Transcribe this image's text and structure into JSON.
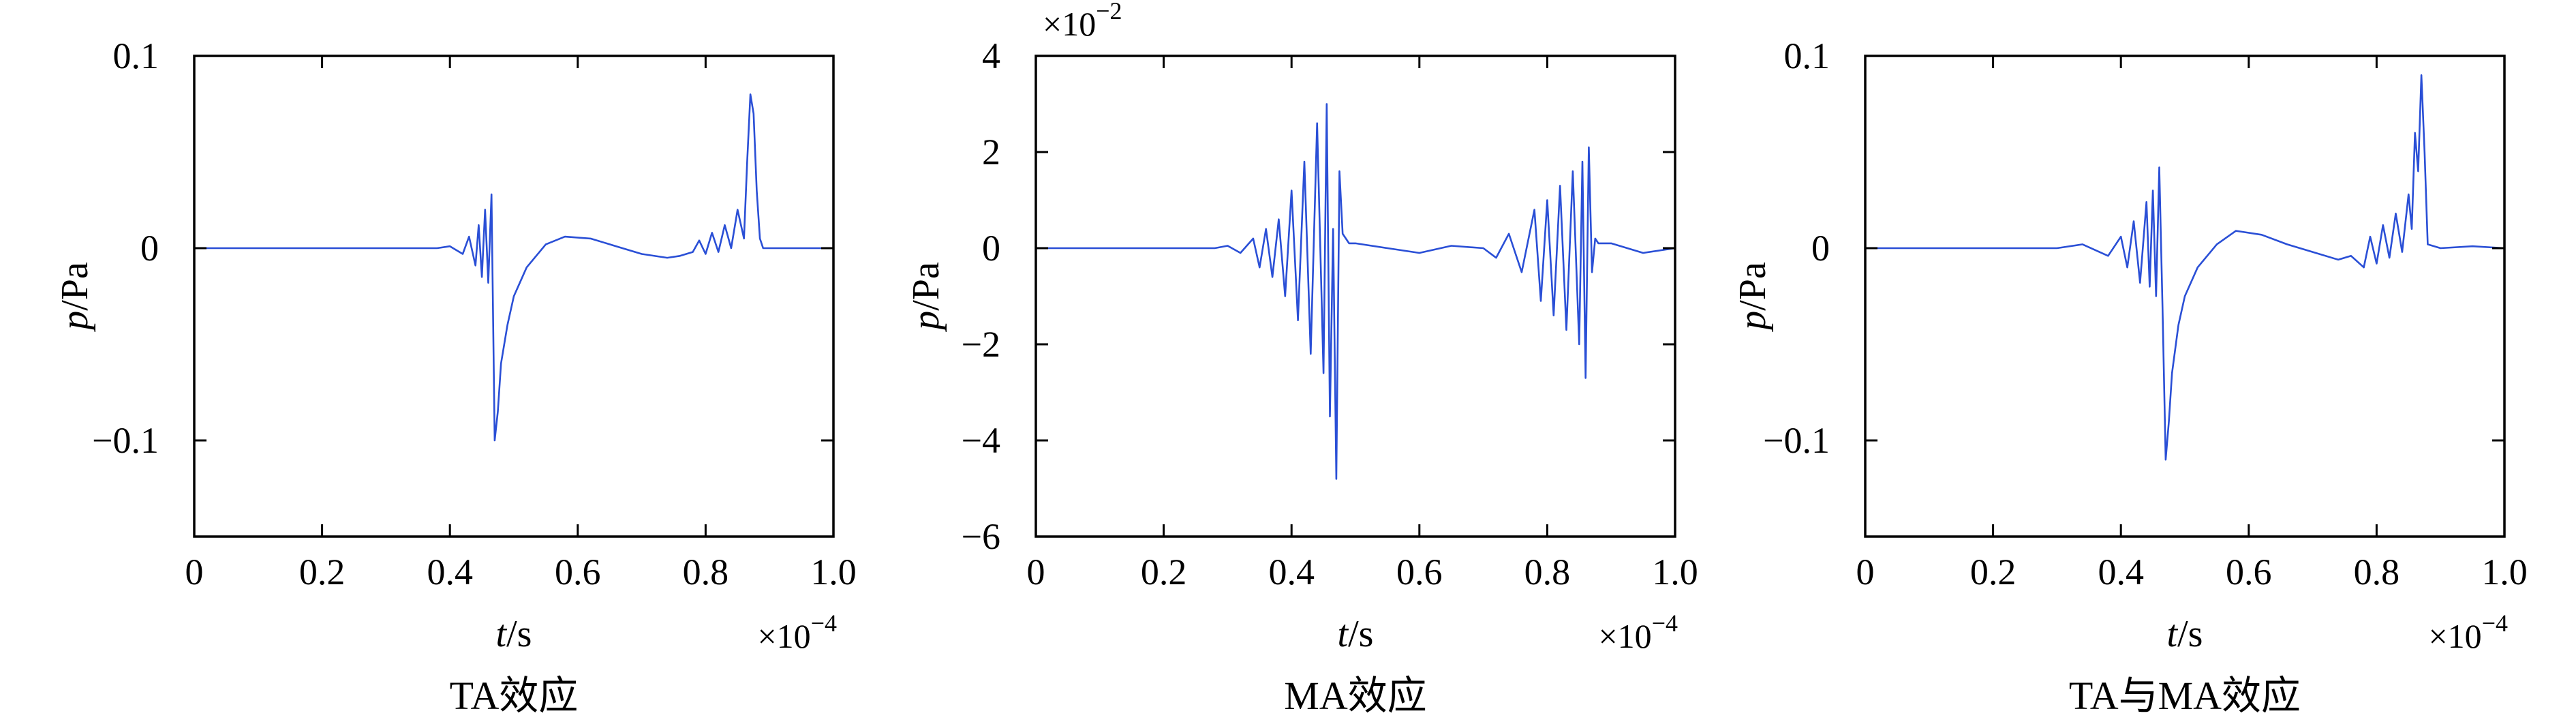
{
  "chart_data": [
    {
      "type": "line",
      "caption": "TA效应",
      "xlabel_var": "t",
      "xlabel_unit": "/s",
      "ylabel_var": "p",
      "ylabel_unit": "/Pa",
      "x_multiplier_base": "×10",
      "x_multiplier_exp": "−4",
      "y_multiplier_base": "",
      "y_multiplier_exp": "",
      "xlim": [
        0,
        1.0
      ],
      "ylim": [
        -0.15,
        0.1
      ],
      "xticks": [
        0,
        0.2,
        0.4,
        0.6,
        0.8,
        1.0
      ],
      "xtick_labels": [
        "0",
        "0.2",
        "0.4",
        "0.6",
        "0.8",
        "1.0"
      ],
      "yticks": [
        -0.1,
        0,
        0.1
      ],
      "ytick_labels": [
        "−0.1",
        "0",
        "0.1"
      ],
      "color": "#2a4fd6",
      "series": [
        {
          "x": [
            0,
            0.38,
            0.4,
            0.42,
            0.43,
            0.44,
            0.445,
            0.45,
            0.455,
            0.46,
            0.465,
            0.47,
            0.475,
            0.48,
            0.49,
            0.5,
            0.52,
            0.55,
            0.58,
            0.62,
            0.66,
            0.7,
            0.74,
            0.76,
            0.78,
            0.79,
            0.8,
            0.81,
            0.82,
            0.83,
            0.84,
            0.85,
            0.86,
            0.865,
            0.87,
            0.875,
            0.88,
            0.885,
            0.89,
            0.92,
            1.0
          ],
          "y": [
            0,
            0,
            0.001,
            -0.003,
            0.006,
            -0.009,
            0.012,
            -0.015,
            0.02,
            -0.018,
            0.028,
            -0.1,
            -0.085,
            -0.06,
            -0.04,
            -0.025,
            -0.01,
            0.002,
            0.006,
            0.005,
            0.001,
            -0.003,
            -0.005,
            -0.004,
            -0.002,
            0.004,
            -0.003,
            0.008,
            -0.002,
            0.012,
            0.0,
            0.02,
            0.005,
            0.045,
            0.08,
            0.07,
            0.03,
            0.005,
            0.0,
            0.0,
            0.0
          ]
        }
      ]
    },
    {
      "type": "line",
      "caption": "MA效应",
      "xlabel_var": "t",
      "xlabel_unit": "/s",
      "ylabel_var": "p",
      "ylabel_unit": "/Pa",
      "x_multiplier_base": "×10",
      "x_multiplier_exp": "−4",
      "y_multiplier_base": "×10",
      "y_multiplier_exp": "−2",
      "xlim": [
        0,
        1.0
      ],
      "ylim": [
        -6,
        4
      ],
      "xticks": [
        0,
        0.2,
        0.4,
        0.6,
        0.8,
        1.0
      ],
      "xtick_labels": [
        "0",
        "0.2",
        "0.4",
        "0.6",
        "0.8",
        "1.0"
      ],
      "yticks": [
        -6,
        -4,
        -2,
        0,
        2,
        4
      ],
      "ytick_labels": [
        "−6",
        "−4",
        "−2",
        "0",
        "2",
        "4"
      ],
      "color": "#2a4fd6",
      "series": [
        {
          "x": [
            0,
            0.28,
            0.3,
            0.32,
            0.34,
            0.35,
            0.36,
            0.37,
            0.38,
            0.39,
            0.4,
            0.41,
            0.42,
            0.43,
            0.44,
            0.45,
            0.455,
            0.46,
            0.465,
            0.47,
            0.475,
            0.48,
            0.49,
            0.5,
            0.55,
            0.6,
            0.65,
            0.7,
            0.72,
            0.74,
            0.76,
            0.78,
            0.79,
            0.8,
            0.81,
            0.82,
            0.83,
            0.84,
            0.85,
            0.855,
            0.86,
            0.865,
            0.87,
            0.875,
            0.88,
            0.9,
            0.95,
            1.0
          ],
          "y": [
            0,
            0,
            0.05,
            -0.1,
            0.2,
            -0.4,
            0.4,
            -0.6,
            0.6,
            -1.0,
            1.2,
            -1.5,
            1.8,
            -2.2,
            2.6,
            -2.6,
            3.0,
            -3.5,
            0.4,
            -4.8,
            1.6,
            0.3,
            0.1,
            0.1,
            0.0,
            -0.1,
            0.05,
            0.0,
            -0.2,
            0.3,
            -0.5,
            0.8,
            -1.1,
            1.0,
            -1.4,
            1.3,
            -1.7,
            1.6,
            -2.0,
            1.8,
            -2.7,
            2.1,
            -0.5,
            0.2,
            0.1,
            0.1,
            -0.1,
            0.0
          ]
        }
      ]
    },
    {
      "type": "line",
      "caption": "TA与MA效应",
      "xlabel_var": "t",
      "xlabel_unit": "/s",
      "ylabel_var": "p",
      "ylabel_unit": "/Pa",
      "x_multiplier_base": "×10",
      "x_multiplier_exp": "−4",
      "y_multiplier_base": "",
      "y_multiplier_exp": "",
      "xlim": [
        0,
        1.0
      ],
      "ylim": [
        -0.15,
        0.1
      ],
      "xticks": [
        0,
        0.2,
        0.4,
        0.6,
        0.8,
        1.0
      ],
      "xtick_labels": [
        "0",
        "0.2",
        "0.4",
        "0.6",
        "0.8",
        "1.0"
      ],
      "yticks": [
        -0.1,
        0,
        0.1
      ],
      "ytick_labels": [
        "−0.1",
        "0",
        "0.1"
      ],
      "color": "#2a4fd6",
      "series": [
        {
          "x": [
            0,
            0.3,
            0.34,
            0.38,
            0.4,
            0.41,
            0.42,
            0.43,
            0.44,
            0.445,
            0.45,
            0.455,
            0.46,
            0.465,
            0.47,
            0.475,
            0.48,
            0.49,
            0.5,
            0.52,
            0.55,
            0.58,
            0.62,
            0.66,
            0.7,
            0.74,
            0.76,
            0.78,
            0.79,
            0.8,
            0.81,
            0.82,
            0.83,
            0.84,
            0.85,
            0.855,
            0.86,
            0.865,
            0.87,
            0.875,
            0.88,
            0.9,
            0.95,
            1.0
          ],
          "y": [
            0,
            0,
            0.002,
            -0.004,
            0.006,
            -0.01,
            0.014,
            -0.018,
            0.024,
            -0.02,
            0.03,
            -0.025,
            0.042,
            -0.03,
            -0.11,
            -0.09,
            -0.065,
            -0.04,
            -0.025,
            -0.01,
            0.002,
            0.009,
            0.007,
            0.002,
            -0.002,
            -0.006,
            -0.004,
            -0.01,
            0.006,
            -0.008,
            0.012,
            -0.005,
            0.018,
            -0.002,
            0.028,
            0.01,
            0.06,
            0.04,
            0.09,
            0.05,
            0.002,
            0.0,
            0.001,
            0.0
          ]
        }
      ]
    }
  ]
}
